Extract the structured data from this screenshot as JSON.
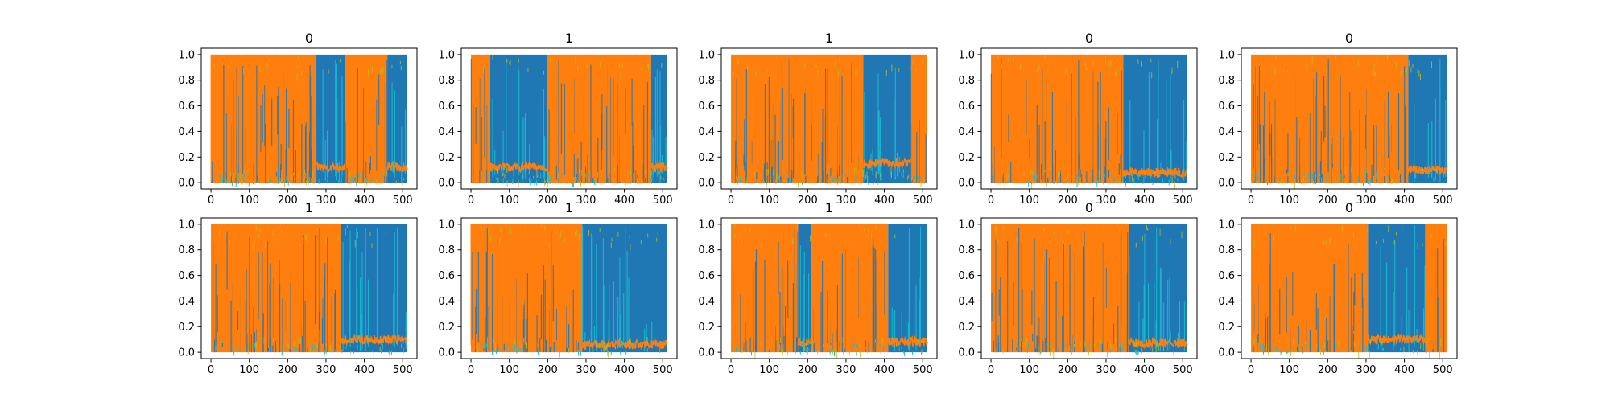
{
  "colors": {
    "blue": "#1f77b4",
    "orange": "#ff7f0e",
    "cyan": "#17becf",
    "olive": "#bcbd22",
    "green": "#2ca02c",
    "red": "#d62728",
    "purple": "#9467bd"
  },
  "chart_data": [
    {
      "type": "line",
      "title": "0",
      "xlim": [
        0,
        512
      ],
      "ylim": [
        0,
        1
      ],
      "x_ticks": [
        0,
        100,
        200,
        300,
        400,
        500
      ],
      "y_ticks": [
        0.0,
        0.2,
        0.4,
        0.6,
        0.8,
        1.0
      ],
      "segments": [
        [
          0,
          275,
          "orange"
        ],
        [
          275,
          350,
          "blue"
        ],
        [
          350,
          460,
          "orange"
        ],
        [
          460,
          512,
          "blue"
        ]
      ],
      "tail_level": 0.12
    },
    {
      "type": "line",
      "title": "1",
      "xlim": [
        0,
        512
      ],
      "ylim": [
        0,
        1
      ],
      "x_ticks": [
        0,
        100,
        200,
        300,
        400,
        500
      ],
      "y_ticks": [
        0.0,
        0.2,
        0.4,
        0.6,
        0.8,
        1.0
      ],
      "segments": [
        [
          0,
          50,
          "orange"
        ],
        [
          50,
          200,
          "blue"
        ],
        [
          200,
          470,
          "orange"
        ],
        [
          470,
          512,
          "blue"
        ]
      ],
      "tail_level": 0.12
    },
    {
      "type": "line",
      "title": "1",
      "xlim": [
        0,
        512
      ],
      "ylim": [
        0,
        1
      ],
      "x_ticks": [
        0,
        100,
        200,
        300,
        400,
        500
      ],
      "y_ticks": [
        0.0,
        0.2,
        0.4,
        0.6,
        0.8,
        1.0
      ],
      "segments": [
        [
          0,
          345,
          "orange"
        ],
        [
          345,
          470,
          "blue"
        ],
        [
          470,
          512,
          "orange"
        ]
      ],
      "tail_level": 0.15
    },
    {
      "type": "line",
      "title": "0",
      "xlim": [
        0,
        512
      ],
      "ylim": [
        0,
        1
      ],
      "x_ticks": [
        0,
        100,
        200,
        300,
        400,
        500
      ],
      "y_ticks": [
        0.0,
        0.2,
        0.4,
        0.6,
        0.8,
        1.0
      ],
      "segments": [
        [
          0,
          345,
          "orange"
        ],
        [
          345,
          512,
          "blue"
        ]
      ],
      "tail_level": 0.08
    },
    {
      "type": "line",
      "title": "0",
      "xlim": [
        0,
        512
      ],
      "ylim": [
        0,
        1
      ],
      "x_ticks": [
        0,
        100,
        200,
        300,
        400,
        500
      ],
      "y_ticks": [
        0.0,
        0.2,
        0.4,
        0.6,
        0.8,
        1.0
      ],
      "segments": [
        [
          0,
          410,
          "orange"
        ],
        [
          410,
          512,
          "blue"
        ]
      ],
      "tail_level": 0.1
    },
    {
      "type": "line",
      "title": "1",
      "xlim": [
        0,
        512
      ],
      "ylim": [
        0,
        1
      ],
      "x_ticks": [
        0,
        100,
        200,
        300,
        400,
        500
      ],
      "y_ticks": [
        0.0,
        0.2,
        0.4,
        0.6,
        0.8,
        1.0
      ],
      "segments": [
        [
          0,
          340,
          "orange"
        ],
        [
          340,
          512,
          "blue"
        ]
      ],
      "tail_level": 0.1
    },
    {
      "type": "line",
      "title": "1",
      "xlim": [
        0,
        512
      ],
      "ylim": [
        0,
        1
      ],
      "x_ticks": [
        0,
        100,
        200,
        300,
        400,
        500
      ],
      "y_ticks": [
        0.0,
        0.2,
        0.4,
        0.6,
        0.8,
        1.0
      ],
      "segments": [
        [
          0,
          290,
          "orange"
        ],
        [
          290,
          512,
          "blue"
        ]
      ],
      "tail_level": 0.06
    },
    {
      "type": "line",
      "title": "1",
      "xlim": [
        0,
        512
      ],
      "ylim": [
        0,
        1
      ],
      "x_ticks": [
        0,
        100,
        200,
        300,
        400,
        500
      ],
      "y_ticks": [
        0.0,
        0.2,
        0.4,
        0.6,
        0.8,
        1.0
      ],
      "segments": [
        [
          0,
          175,
          "orange"
        ],
        [
          175,
          210,
          "blue"
        ],
        [
          210,
          410,
          "orange"
        ],
        [
          410,
          512,
          "blue"
        ]
      ],
      "tail_level": 0.08
    },
    {
      "type": "line",
      "title": "0",
      "xlim": [
        0,
        512
      ],
      "ylim": [
        0,
        1
      ],
      "x_ticks": [
        0,
        100,
        200,
        300,
        400,
        500
      ],
      "y_ticks": [
        0.0,
        0.2,
        0.4,
        0.6,
        0.8,
        1.0
      ],
      "segments": [
        [
          0,
          360,
          "orange"
        ],
        [
          360,
          512,
          "blue"
        ]
      ],
      "tail_level": 0.07
    },
    {
      "type": "line",
      "title": "0",
      "xlim": [
        0,
        512
      ],
      "ylim": [
        0,
        1
      ],
      "x_ticks": [
        0,
        100,
        200,
        300,
        400,
        500
      ],
      "y_ticks": [
        0.0,
        0.2,
        0.4,
        0.6,
        0.8,
        1.0
      ],
      "segments": [
        [
          0,
          305,
          "orange"
        ],
        [
          305,
          455,
          "blue"
        ],
        [
          455,
          512,
          "orange"
        ]
      ],
      "tail_level": 0.1
    }
  ]
}
